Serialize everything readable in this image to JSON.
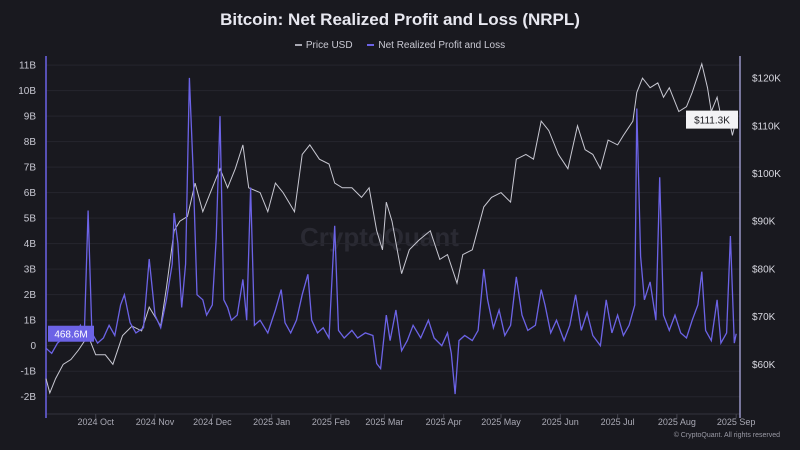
{
  "chart_data": {
    "type": "line",
    "title": "Bitcoin: Net Realized Profit and Loss (NRPL)",
    "watermark": "CryptoQuant",
    "copyright": "© CryptoQuant. All rights reserved",
    "legend_position": "top-center",
    "grid": true,
    "colors": {
      "background": "#19191f",
      "price": "#c8c8d2",
      "nrpl": "#6c63e6",
      "grid": "#26262e"
    },
    "left_axis": {
      "ticks": [
        "11B",
        "10B",
        "9B",
        "8B",
        "7B",
        "6B",
        "5B",
        "4B",
        "3B",
        "2B",
        "1B",
        "0",
        "-1B",
        "-2B"
      ],
      "tick_values": [
        11,
        10,
        9,
        8,
        7,
        6,
        5,
        4,
        3,
        2,
        1,
        0,
        -1,
        -2
      ],
      "range": [
        -2.6,
        11.2
      ],
      "unit": "billion USD"
    },
    "right_axis": {
      "ticks": [
        "$120K",
        "$110K",
        "$100K",
        "$90K",
        "$80K",
        "$70K",
        "$60K"
      ],
      "tick_values": [
        120,
        110,
        100,
        90,
        80,
        70,
        60
      ],
      "range": [
        50,
        123.8
      ],
      "unit": "thousand USD"
    },
    "x_axis": {
      "ticks": [
        "2024 Oct",
        "2024 Nov",
        "2024 Dec",
        "2025 Jan",
        "2025 Feb",
        "2025 Mar",
        "2025 Apr",
        "2025 May",
        "2025 Jun",
        "2025 Jul",
        "2025 Aug",
        "2025 Sep"
      ],
      "tick_dates": [
        "2024-10-01",
        "2024-11-01",
        "2024-12-01",
        "2025-01-01",
        "2025-02-01",
        "2025-03-01",
        "2025-04-01",
        "2025-05-01",
        "2025-06-01",
        "2025-07-01",
        "2025-08-01",
        "2025-09-01"
      ],
      "range": [
        "2024-09-05",
        "2025-09-03"
      ]
    },
    "current_labels": {
      "nrpl": "468.6M",
      "price": "$111.3K"
    },
    "series": [
      {
        "name": "Price USD",
        "data": [
          [
            "2024-09-05",
            57
          ],
          [
            "2024-09-07",
            54
          ],
          [
            "2024-09-10",
            57
          ],
          [
            "2024-09-14",
            60
          ],
          [
            "2024-09-18",
            61
          ],
          [
            "2024-09-22",
            63
          ],
          [
            "2024-09-27",
            66
          ],
          [
            "2024-10-01",
            62
          ],
          [
            "2024-10-06",
            62
          ],
          [
            "2024-10-10",
            60
          ],
          [
            "2024-10-15",
            66
          ],
          [
            "2024-10-20",
            68
          ],
          [
            "2024-10-25",
            67
          ],
          [
            "2024-10-29",
            72
          ],
          [
            "2024-11-04",
            68
          ],
          [
            "2024-11-07",
            76
          ],
          [
            "2024-11-11",
            88
          ],
          [
            "2024-11-14",
            90
          ],
          [
            "2024-11-18",
            91
          ],
          [
            "2024-11-22",
            98
          ],
          [
            "2024-11-26",
            92
          ],
          [
            "2024-11-30",
            96
          ],
          [
            "2024-12-05",
            101
          ],
          [
            "2024-12-09",
            97
          ],
          [
            "2024-12-13",
            101
          ],
          [
            "2024-12-17",
            106
          ],
          [
            "2024-12-20",
            97
          ],
          [
            "2024-12-26",
            96
          ],
          [
            "2024-12-30",
            92
          ],
          [
            "2025-01-03",
            98
          ],
          [
            "2025-01-07",
            96
          ],
          [
            "2025-01-10",
            94
          ],
          [
            "2025-01-13",
            92
          ],
          [
            "2025-01-17",
            104
          ],
          [
            "2025-01-21",
            106
          ],
          [
            "2025-01-26",
            103
          ],
          [
            "2025-01-31",
            102
          ],
          [
            "2025-02-03",
            98
          ],
          [
            "2025-02-07",
            97
          ],
          [
            "2025-02-12",
            97
          ],
          [
            "2025-02-17",
            95
          ],
          [
            "2025-02-21",
            97
          ],
          [
            "2025-02-25",
            88
          ],
          [
            "2025-02-28",
            84
          ],
          [
            "2025-03-02",
            94
          ],
          [
            "2025-03-05",
            90
          ],
          [
            "2025-03-10",
            79
          ],
          [
            "2025-03-14",
            84
          ],
          [
            "2025-03-19",
            86
          ],
          [
            "2025-03-25",
            88
          ],
          [
            "2025-03-30",
            82
          ],
          [
            "2025-04-03",
            83
          ],
          [
            "2025-04-08",
            77
          ],
          [
            "2025-04-11",
            83
          ],
          [
            "2025-04-16",
            84
          ],
          [
            "2025-04-22",
            93
          ],
          [
            "2025-04-26",
            95
          ],
          [
            "2025-05-01",
            96
          ],
          [
            "2025-05-06",
            94
          ],
          [
            "2025-05-09",
            103
          ],
          [
            "2025-05-14",
            104
          ],
          [
            "2025-05-18",
            103
          ],
          [
            "2025-05-22",
            111
          ],
          [
            "2025-05-26",
            109
          ],
          [
            "2025-05-31",
            104
          ],
          [
            "2025-06-05",
            101
          ],
          [
            "2025-06-10",
            110
          ],
          [
            "2025-06-14",
            105
          ],
          [
            "2025-06-18",
            104
          ],
          [
            "2025-06-22",
            101
          ],
          [
            "2025-06-26",
            107
          ],
          [
            "2025-07-01",
            106
          ],
          [
            "2025-07-04",
            108
          ],
          [
            "2025-07-09",
            111
          ],
          [
            "2025-07-11",
            117
          ],
          [
            "2025-07-14",
            120
          ],
          [
            "2025-07-18",
            118
          ],
          [
            "2025-07-22",
            119
          ],
          [
            "2025-07-25",
            116
          ],
          [
            "2025-07-28",
            118
          ],
          [
            "2025-08-02",
            113
          ],
          [
            "2025-08-06",
            114
          ],
          [
            "2025-08-09",
            117
          ],
          [
            "2025-08-14",
            123
          ],
          [
            "2025-08-17",
            118
          ],
          [
            "2025-08-19",
            113
          ],
          [
            "2025-08-22",
            116
          ],
          [
            "2025-08-25",
            110
          ],
          [
            "2025-08-28",
            112
          ],
          [
            "2025-08-30",
            108
          ],
          [
            "2025-09-01",
            111.3
          ]
        ]
      },
      {
        "name": "Net Realized Profit and Loss",
        "data": [
          [
            "2024-09-05",
            -0.1
          ],
          [
            "2024-09-08",
            -0.3
          ],
          [
            "2024-09-11",
            0.1
          ],
          [
            "2024-09-14",
            0.3
          ],
          [
            "2024-09-17",
            0.6
          ],
          [
            "2024-09-20",
            0.4
          ],
          [
            "2024-09-23",
            0.8
          ],
          [
            "2024-09-25",
            0.3
          ],
          [
            "2024-09-27",
            5.3
          ],
          [
            "2024-09-29",
            0.5
          ],
          [
            "2024-10-02",
            0.1
          ],
          [
            "2024-10-05",
            0.3
          ],
          [
            "2024-10-08",
            0.8
          ],
          [
            "2024-10-11",
            0.4
          ],
          [
            "2024-10-14",
            1.6
          ],
          [
            "2024-10-16",
            2.0
          ],
          [
            "2024-10-19",
            0.9
          ],
          [
            "2024-10-22",
            0.5
          ],
          [
            "2024-10-26",
            0.7
          ],
          [
            "2024-10-29",
            3.4
          ],
          [
            "2024-11-01",
            1.2
          ],
          [
            "2024-11-04",
            0.7
          ],
          [
            "2024-11-07",
            1.8
          ],
          [
            "2024-11-10",
            3.2
          ],
          [
            "2024-11-11",
            5.2
          ],
          [
            "2024-11-13",
            4.0
          ],
          [
            "2024-11-15",
            1.5
          ],
          [
            "2024-11-17",
            3.2
          ],
          [
            "2024-11-19",
            10.5
          ],
          [
            "2024-11-21",
            6.8
          ],
          [
            "2024-11-23",
            2.0
          ],
          [
            "2024-11-26",
            1.8
          ],
          [
            "2024-11-28",
            1.2
          ],
          [
            "2024-12-01",
            1.6
          ],
          [
            "2024-12-03",
            4.2
          ],
          [
            "2024-12-05",
            9.0
          ],
          [
            "2024-12-07",
            1.8
          ],
          [
            "2024-12-09",
            1.5
          ],
          [
            "2024-12-11",
            1.0
          ],
          [
            "2024-12-14",
            1.2
          ],
          [
            "2024-12-17",
            2.6
          ],
          [
            "2024-12-19",
            1.0
          ],
          [
            "2024-12-21",
            6.2
          ],
          [
            "2024-12-23",
            0.8
          ],
          [
            "2024-12-26",
            1.0
          ],
          [
            "2024-12-30",
            0.5
          ],
          [
            "2025-01-03",
            1.4
          ],
          [
            "2025-01-06",
            2.2
          ],
          [
            "2025-01-08",
            0.9
          ],
          [
            "2025-01-11",
            0.5
          ],
          [
            "2025-01-14",
            1.0
          ],
          [
            "2025-01-17",
            2.0
          ],
          [
            "2025-01-20",
            2.8
          ],
          [
            "2025-01-22",
            1.0
          ],
          [
            "2025-01-25",
            0.5
          ],
          [
            "2025-01-28",
            0.7
          ],
          [
            "2025-01-31",
            0.3
          ],
          [
            "2025-02-03",
            4.7
          ],
          [
            "2025-02-05",
            0.6
          ],
          [
            "2025-02-08",
            0.3
          ],
          [
            "2025-02-12",
            0.6
          ],
          [
            "2025-02-15",
            0.3
          ],
          [
            "2025-02-19",
            0.5
          ],
          [
            "2025-02-23",
            0.4
          ],
          [
            "2025-02-25",
            -0.7
          ],
          [
            "2025-02-27",
            -0.9
          ],
          [
            "2025-03-02",
            1.2
          ],
          [
            "2025-03-04",
            0.2
          ],
          [
            "2025-03-07",
            1.4
          ],
          [
            "2025-03-10",
            -0.2
          ],
          [
            "2025-03-13",
            0.2
          ],
          [
            "2025-03-16",
            0.8
          ],
          [
            "2025-03-20",
            0.3
          ],
          [
            "2025-03-24",
            1.0
          ],
          [
            "2025-03-27",
            0.3
          ],
          [
            "2025-03-31",
            0.0
          ],
          [
            "2025-04-03",
            0.5
          ],
          [
            "2025-04-05",
            -0.3
          ],
          [
            "2025-04-07",
            -1.9
          ],
          [
            "2025-04-09",
            0.2
          ],
          [
            "2025-04-12",
            0.4
          ],
          [
            "2025-04-16",
            0.2
          ],
          [
            "2025-04-19",
            0.6
          ],
          [
            "2025-04-22",
            3.0
          ],
          [
            "2025-04-24",
            1.8
          ],
          [
            "2025-04-27",
            0.7
          ],
          [
            "2025-04-30",
            1.4
          ],
          [
            "2025-05-03",
            0.4
          ],
          [
            "2025-05-06",
            0.8
          ],
          [
            "2025-05-09",
            2.7
          ],
          [
            "2025-05-12",
            1.2
          ],
          [
            "2025-05-15",
            0.6
          ],
          [
            "2025-05-19",
            0.8
          ],
          [
            "2025-05-22",
            2.2
          ],
          [
            "2025-05-24",
            1.6
          ],
          [
            "2025-05-27",
            0.5
          ],
          [
            "2025-05-30",
            1.0
          ],
          [
            "2025-06-03",
            0.2
          ],
          [
            "2025-06-06",
            0.8
          ],
          [
            "2025-06-09",
            2.0
          ],
          [
            "2025-06-12",
            0.6
          ],
          [
            "2025-06-15",
            1.3
          ],
          [
            "2025-06-18",
            0.4
          ],
          [
            "2025-06-22",
            0.0
          ],
          [
            "2025-06-25",
            1.8
          ],
          [
            "2025-06-28",
            0.5
          ],
          [
            "2025-07-01",
            1.2
          ],
          [
            "2025-07-04",
            0.4
          ],
          [
            "2025-07-07",
            0.8
          ],
          [
            "2025-07-10",
            1.6
          ],
          [
            "2025-07-11",
            9.3
          ],
          [
            "2025-07-13",
            3.5
          ],
          [
            "2025-07-15",
            1.8
          ],
          [
            "2025-07-18",
            2.5
          ],
          [
            "2025-07-21",
            1.0
          ],
          [
            "2025-07-23",
            6.6
          ],
          [
            "2025-07-25",
            1.2
          ],
          [
            "2025-07-28",
            0.6
          ],
          [
            "2025-07-31",
            1.2
          ],
          [
            "2025-08-03",
            0.5
          ],
          [
            "2025-08-06",
            0.3
          ],
          [
            "2025-08-09",
            1.0
          ],
          [
            "2025-08-12",
            1.6
          ],
          [
            "2025-08-14",
            2.9
          ],
          [
            "2025-08-16",
            0.6
          ],
          [
            "2025-08-19",
            0.2
          ],
          [
            "2025-08-22",
            1.8
          ],
          [
            "2025-08-24",
            0.1
          ],
          [
            "2025-08-27",
            0.5
          ],
          [
            "2025-08-29",
            4.3
          ],
          [
            "2025-08-31",
            0.1
          ],
          [
            "2025-09-01",
            0.4686
          ]
        ]
      }
    ]
  }
}
